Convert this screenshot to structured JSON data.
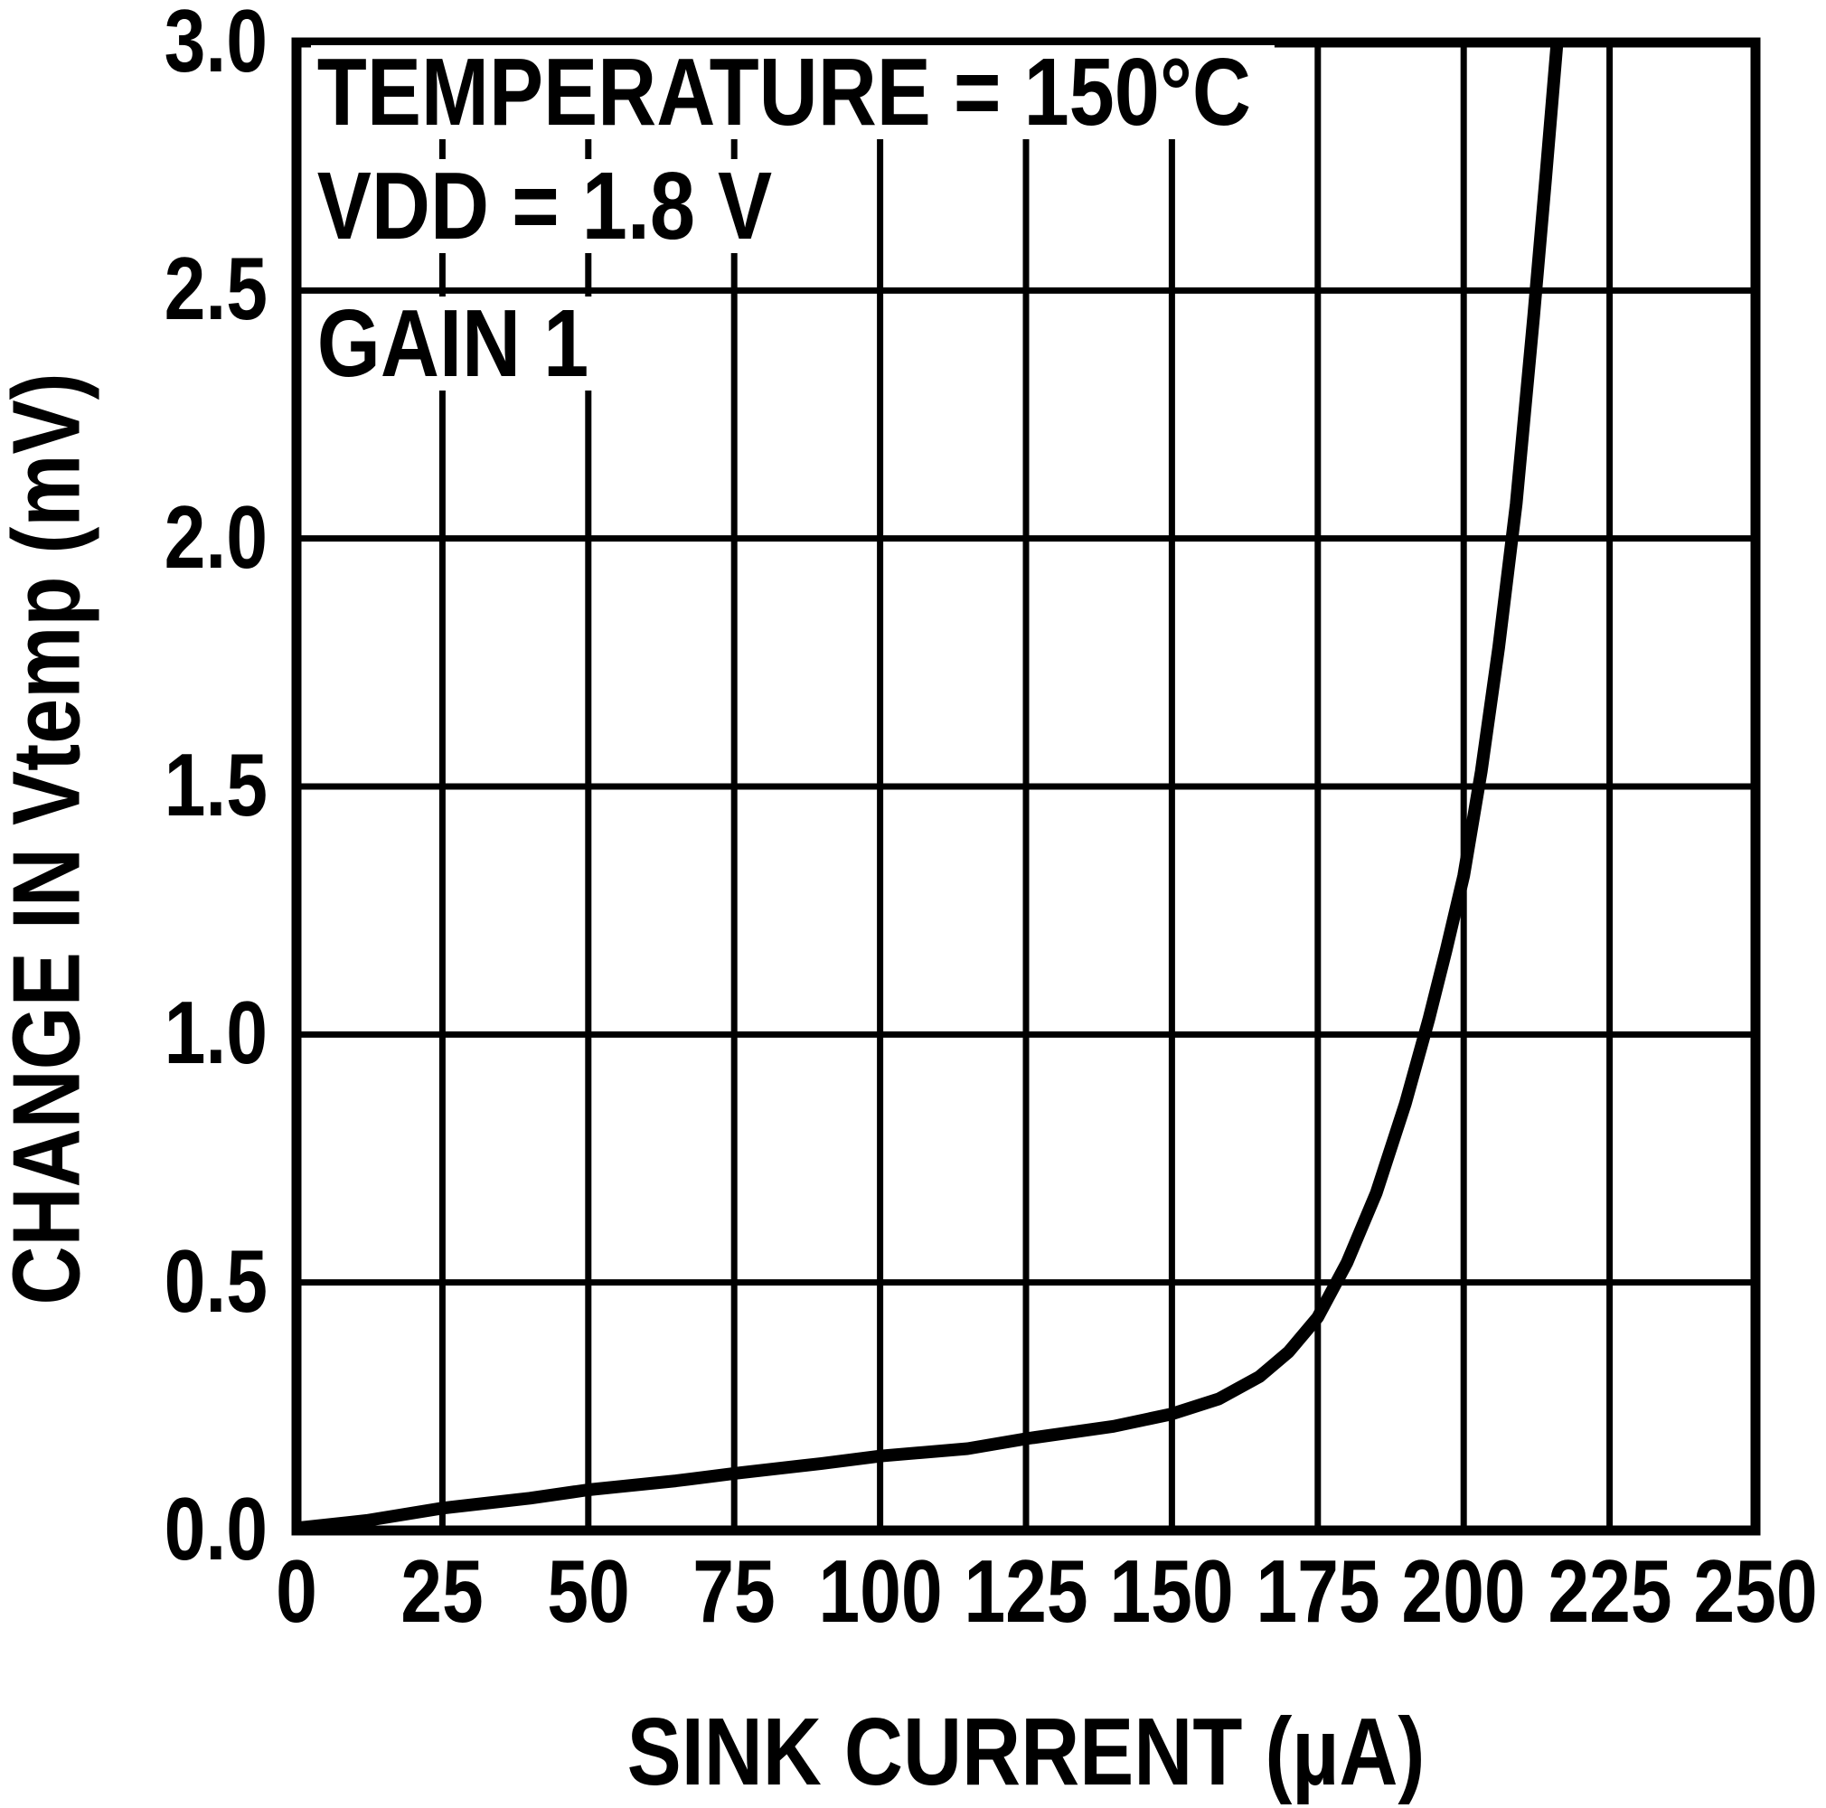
{
  "figure": {
    "background": "#ffffff",
    "ink": "#000000"
  },
  "chart_data": {
    "type": "line",
    "title": "",
    "xlabel": "SINK CURRENT (µA)",
    "ylabel": "CHANGE IN Vtemp (mV)",
    "annotations": [
      "TEMPERATURE = 150°C",
      "VDD = 1.8 V",
      "GAIN 1"
    ],
    "xlim": [
      0,
      250
    ],
    "ylim": [
      0,
      3
    ],
    "xticks": [
      0,
      25,
      50,
      75,
      100,
      125,
      150,
      175,
      200,
      225,
      250
    ],
    "xtick_labels": [
      "0",
      "25",
      "50",
      "75",
      "100",
      "125",
      "150",
      "175",
      "200",
      "225",
      "250"
    ],
    "yticks": [
      0,
      0.5,
      1,
      1.5,
      2,
      2.5,
      3
    ],
    "ytick_labels": [
      "0.0",
      "0.5",
      "1.0",
      "1.5",
      "2.0",
      "2.5",
      "3.0"
    ],
    "grid": true,
    "legend_position": "none",
    "series": [
      {
        "name": "CHANGE IN Vtemp",
        "color": "#000000",
        "points": [
          [
            0,
            0.005
          ],
          [
            12,
            0.02
          ],
          [
            25,
            0.045
          ],
          [
            40,
            0.065
          ],
          [
            50,
            0.082
          ],
          [
            65,
            0.1
          ],
          [
            75,
            0.115
          ],
          [
            90,
            0.135
          ],
          [
            100,
            0.15
          ],
          [
            115,
            0.165
          ],
          [
            125,
            0.185
          ],
          [
            140,
            0.21
          ],
          [
            150,
            0.235
          ],
          [
            158,
            0.265
          ],
          [
            165,
            0.31
          ],
          [
            170,
            0.36
          ],
          [
            175,
            0.43
          ],
          [
            180,
            0.54
          ],
          [
            185,
            0.68
          ],
          [
            190,
            0.86
          ],
          [
            194,
            1.03
          ],
          [
            197,
            1.17
          ],
          [
            200,
            1.32
          ],
          [
            203,
            1.53
          ],
          [
            206,
            1.78
          ],
          [
            209,
            2.07
          ],
          [
            212,
            2.45
          ],
          [
            214,
            2.72
          ],
          [
            216,
            3.0
          ],
          [
            217,
            3.12
          ]
        ]
      }
    ]
  }
}
